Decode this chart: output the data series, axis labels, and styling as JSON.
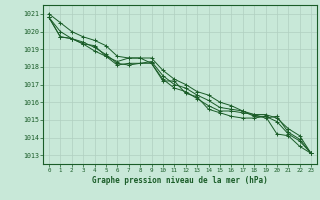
{
  "xlabel": "Graphe pression niveau de la mer (hPa)",
  "ylim": [
    1012.5,
    1021.5
  ],
  "xlim": [
    -0.5,
    23.5
  ],
  "yticks": [
    1013,
    1014,
    1015,
    1016,
    1017,
    1018,
    1019,
    1020,
    1021
  ],
  "xticks": [
    0,
    1,
    2,
    3,
    4,
    5,
    6,
    7,
    8,
    9,
    10,
    11,
    12,
    13,
    14,
    15,
    16,
    17,
    18,
    19,
    20,
    21,
    22,
    23
  ],
  "bg_color": "#c8e8d8",
  "grid_color": "#b0cfc0",
  "line_color": "#1a5c28",
  "series": [
    [
      1020.8,
      1020.0,
      1019.6,
      1019.3,
      1019.2,
      1018.6,
      1018.3,
      1018.5,
      1018.5,
      1018.2,
      1017.2,
      1017.2,
      1016.5,
      1016.3,
      1015.6,
      1015.4,
      1015.2,
      1015.1,
      1015.1,
      1015.2,
      1014.2,
      1014.1,
      1013.5,
      1013.1
    ],
    [
      1020.8,
      1019.7,
      1019.6,
      1019.3,
      1018.9,
      1018.6,
      1018.1,
      1018.2,
      1018.2,
      1018.2,
      1017.3,
      1016.8,
      1016.6,
      1016.2,
      1015.8,
      1015.5,
      1015.5,
      1015.4,
      1015.3,
      1015.1,
      1015.2,
      1014.3,
      1013.9,
      1013.1
    ],
    [
      1020.8,
      1019.7,
      1019.6,
      1019.4,
      1019.1,
      1018.7,
      1018.2,
      1018.1,
      1018.2,
      1018.3,
      1017.5,
      1017.0,
      1016.8,
      1016.4,
      1016.1,
      1015.7,
      1015.6,
      1015.5,
      1015.3,
      1015.3,
      1015.1,
      1014.5,
      1014.1,
      1013.1
    ],
    [
      1021.0,
      1020.5,
      1020.0,
      1019.7,
      1019.5,
      1019.2,
      1018.6,
      1018.5,
      1018.5,
      1018.5,
      1017.8,
      1017.3,
      1017.0,
      1016.6,
      1016.4,
      1016.0,
      1015.8,
      1015.5,
      1015.2,
      1015.2,
      1014.9,
      1014.2,
      1013.8,
      1013.1
    ]
  ]
}
